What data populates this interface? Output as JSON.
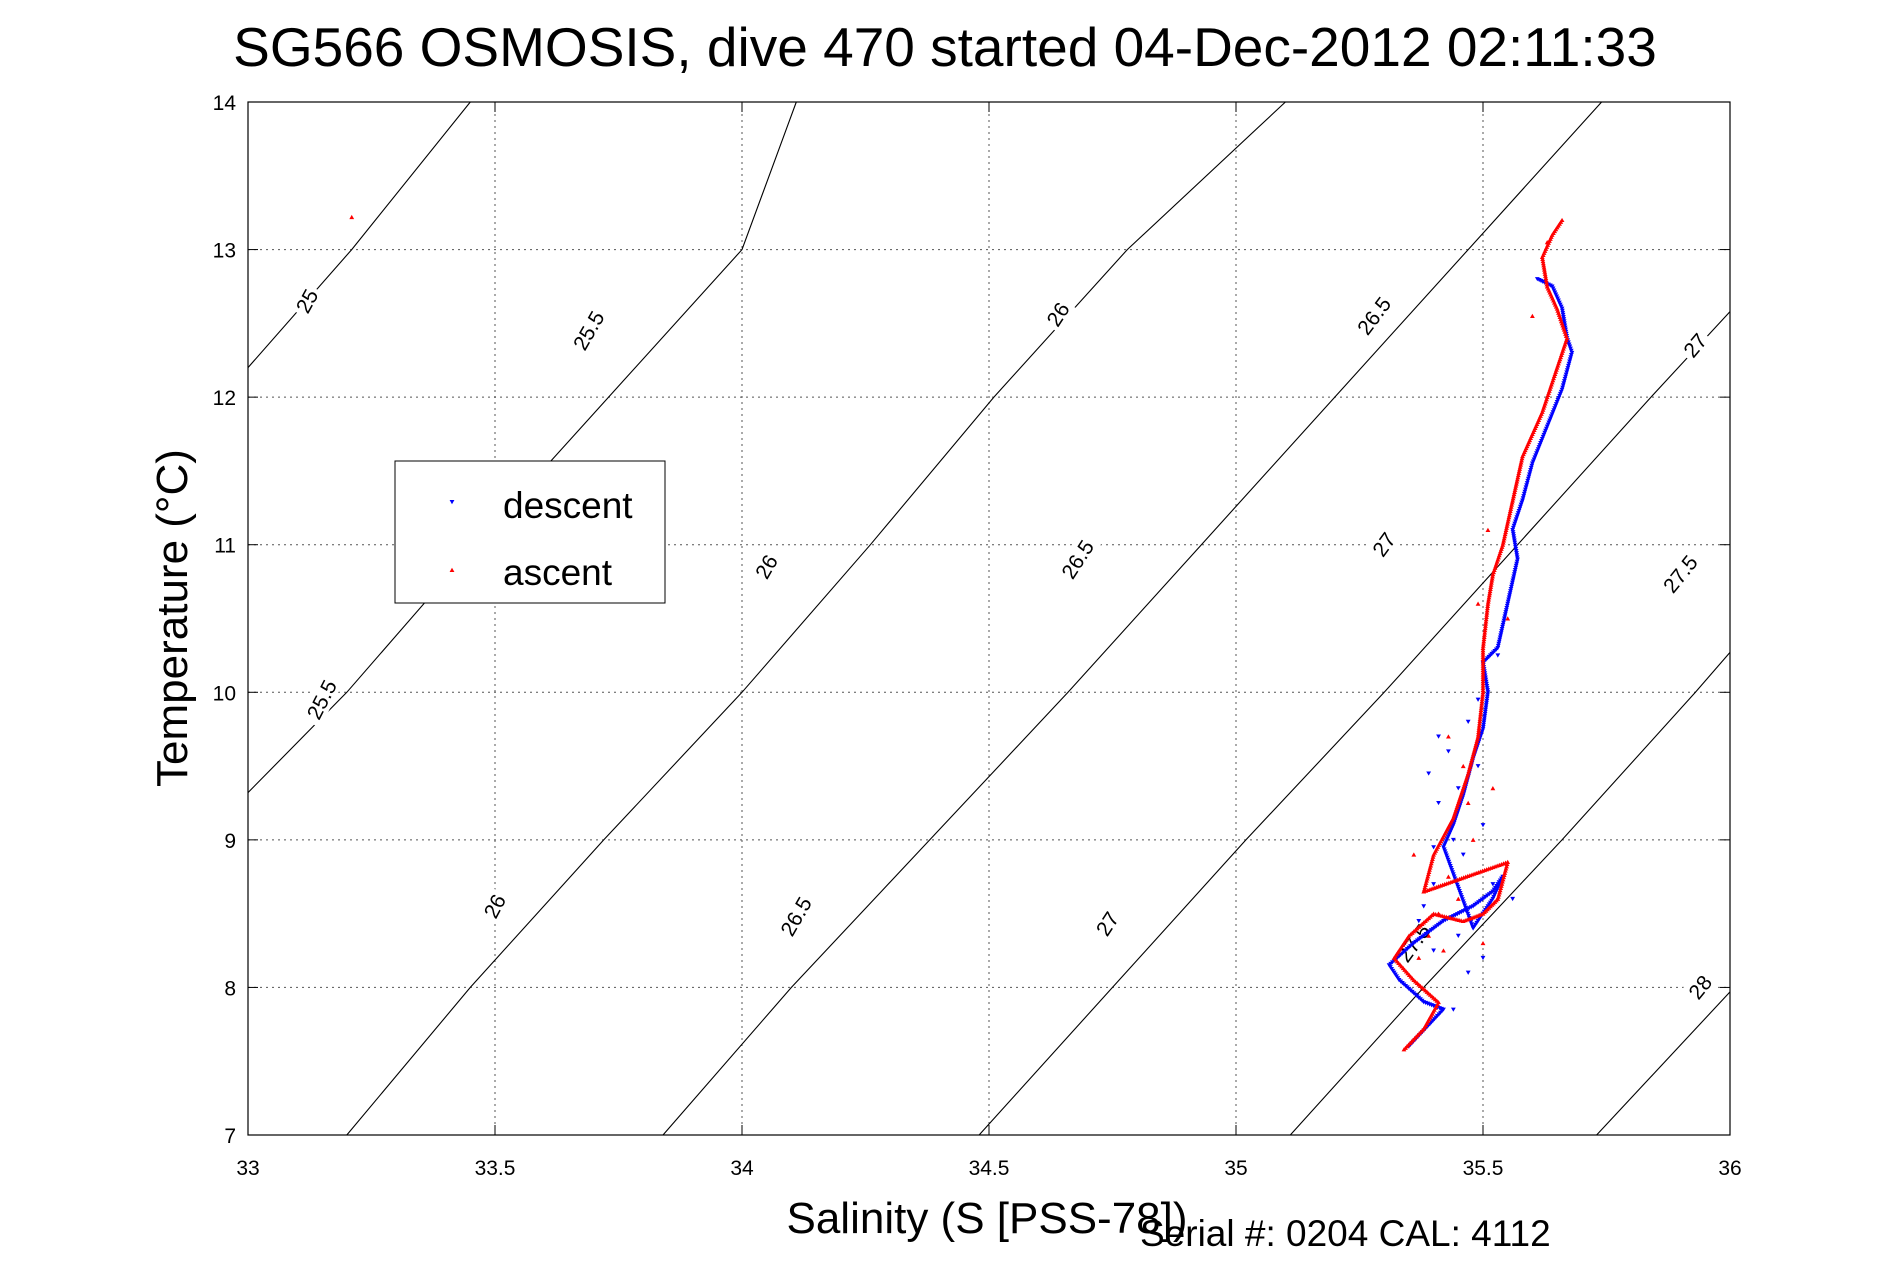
{
  "chart_data": {
    "type": "scatter",
    "title": "SG566 OSMOSIS, dive 470 started 04-Dec-2012 02:11:33",
    "xlabel": "Salinity (S [PSS-78])",
    "ylabel": "Temperature (°C)",
    "xlim": [
      33,
      36
    ],
    "ylim": [
      7,
      14
    ],
    "x_ticks": [
      "33",
      "33.5",
      "34",
      "34.5",
      "35",
      "35.5",
      "36"
    ],
    "y_ticks": [
      "7",
      "8",
      "9",
      "10",
      "11",
      "12",
      "13",
      "14"
    ],
    "grid": true,
    "legend_position": "left",
    "footer": "Serial #: 0204  CAL: 4112",
    "colors": {
      "descent": "#0000ff",
      "ascent": "#ff0000",
      "contour": "#000000"
    },
    "contours": [
      {
        "label": "25",
        "points": [
          [
            33.0,
            12.2
          ],
          [
            33.21,
            13.0
          ],
          [
            33.45,
            14.0
          ]
        ]
      },
      {
        "label": "25.5",
        "points": [
          [
            33.0,
            9.32
          ],
          [
            33.2,
            10.0
          ],
          [
            33.46,
            11.0
          ],
          [
            33.73,
            12.0
          ],
          [
            34.0,
            13.0
          ],
          [
            34.11,
            14.0
          ]
        ]
      },
      {
        "label": "26",
        "points": [
          [
            33.2,
            7.0
          ],
          [
            33.45,
            8.0
          ],
          [
            33.72,
            9.0
          ],
          [
            34.0,
            10.0
          ],
          [
            34.26,
            11.0
          ],
          [
            34.51,
            12.0
          ],
          [
            34.78,
            13.0
          ],
          [
            35.1,
            14.0
          ]
        ]
      },
      {
        "label": "26.5",
        "points": [
          [
            33.84,
            7.0
          ],
          [
            34.1,
            8.0
          ],
          [
            34.38,
            9.0
          ],
          [
            34.66,
            10.0
          ],
          [
            34.93,
            11.0
          ],
          [
            35.2,
            12.0
          ],
          [
            35.47,
            13.0
          ],
          [
            35.74,
            14.0
          ]
        ]
      },
      {
        "label": "27",
        "points": [
          [
            34.48,
            7.0
          ],
          [
            34.75,
            8.0
          ],
          [
            35.02,
            9.0
          ],
          [
            35.3,
            10.0
          ],
          [
            35.57,
            11.0
          ],
          [
            35.84,
            12.0
          ],
          [
            36.0,
            12.58
          ]
        ]
      },
      {
        "label": "27.5",
        "points": [
          [
            35.11,
            7.0
          ],
          [
            35.38,
            8.0
          ],
          [
            35.66,
            9.0
          ],
          [
            35.93,
            10.0
          ],
          [
            36.0,
            10.27
          ]
        ]
      },
      {
        "label": "28",
        "points": [
          [
            35.73,
            7.0
          ],
          [
            36.0,
            7.97
          ]
        ]
      }
    ],
    "contour_labels": [
      {
        "text": "25",
        "s": 33.12,
        "t": 12.65,
        "angle": -61
      },
      {
        "text": "25.5",
        "s": 33.69,
        "t": 12.45,
        "angle": -60
      },
      {
        "text": "26",
        "s": 34.64,
        "t": 12.56,
        "angle": -57
      },
      {
        "text": "26.5",
        "s": 35.28,
        "t": 12.55,
        "angle": -53
      },
      {
        "text": "27",
        "s": 35.93,
        "t": 12.35,
        "angle": -50
      },
      {
        "text": "25.5",
        "s": 33.15,
        "t": 9.95,
        "angle": -63
      },
      {
        "text": "26",
        "s": 34.05,
        "t": 10.85,
        "angle": -60
      },
      {
        "text": "26.5",
        "s": 34.68,
        "t": 10.9,
        "angle": -57
      },
      {
        "text": "27",
        "s": 35.3,
        "t": 11.0,
        "angle": -54
      },
      {
        "text": "27.5",
        "s": 35.9,
        "t": 10.8,
        "angle": -51
      },
      {
        "text": "26",
        "s": 33.5,
        "t": 8.55,
        "angle": -62
      },
      {
        "text": "26.5",
        "s": 34.11,
        "t": 8.48,
        "angle": -60
      },
      {
        "text": "27",
        "s": 34.74,
        "t": 8.43,
        "angle": -57
      },
      {
        "text": "27.5",
        "s": 35.36,
        "t": 8.3,
        "angle": -54
      },
      {
        "text": "28",
        "s": 35.94,
        "t": 8.0,
        "angle": -51
      }
    ],
    "series": [
      {
        "name": "descent",
        "marker": "triangle-down",
        "path": [
          [
            35.35,
            7.6
          ],
          [
            35.42,
            7.85
          ],
          [
            35.38,
            7.9
          ],
          [
            35.33,
            8.05
          ],
          [
            35.31,
            8.15
          ],
          [
            35.36,
            8.3
          ],
          [
            35.42,
            8.45
          ],
          [
            35.48,
            8.55
          ],
          [
            35.52,
            8.65
          ],
          [
            35.54,
            8.75
          ],
          [
            35.52,
            8.6
          ],
          [
            35.48,
            8.4
          ],
          [
            35.42,
            8.95
          ],
          [
            35.44,
            9.1
          ],
          [
            35.46,
            9.3
          ],
          [
            35.48,
            9.55
          ],
          [
            35.5,
            9.75
          ],
          [
            35.51,
            10.0
          ],
          [
            35.5,
            10.2
          ],
          [
            35.53,
            10.3
          ],
          [
            35.55,
            10.6
          ],
          [
            35.57,
            10.9
          ],
          [
            35.56,
            11.1
          ],
          [
            35.58,
            11.3
          ],
          [
            35.6,
            11.55
          ],
          [
            35.63,
            11.8
          ],
          [
            35.66,
            12.05
          ],
          [
            35.68,
            12.3
          ],
          [
            35.67,
            12.4
          ],
          [
            35.66,
            12.6
          ],
          [
            35.64,
            12.75
          ],
          [
            35.61,
            12.8
          ]
        ],
        "scatter": [
          [
            35.38,
            8.55
          ],
          [
            35.4,
            8.7
          ],
          [
            35.45,
            8.35
          ],
          [
            35.5,
            8.2
          ],
          [
            35.47,
            8.1
          ],
          [
            35.44,
            7.85
          ],
          [
            35.4,
            8.25
          ],
          [
            35.37,
            8.45
          ],
          [
            35.39,
            9.45
          ],
          [
            35.41,
            9.25
          ],
          [
            35.43,
            9.6
          ],
          [
            35.47,
            9.8
          ],
          [
            35.49,
            9.5
          ],
          [
            35.45,
            9.35
          ],
          [
            35.4,
            8.95
          ],
          [
            35.46,
            8.9
          ],
          [
            35.5,
            9.1
          ],
          [
            35.52,
            8.7
          ],
          [
            35.56,
            8.6
          ],
          [
            35.41,
            9.7
          ],
          [
            35.44,
            9.0
          ],
          [
            35.53,
            10.25
          ],
          [
            35.49,
            9.95
          ]
        ]
      },
      {
        "name": "ascent",
        "marker": "triangle-up",
        "path": [
          [
            35.34,
            7.58
          ],
          [
            35.38,
            7.72
          ],
          [
            35.41,
            7.9
          ],
          [
            35.36,
            8.05
          ],
          [
            35.32,
            8.2
          ],
          [
            35.35,
            8.35
          ],
          [
            35.4,
            8.5
          ],
          [
            35.46,
            8.45
          ],
          [
            35.5,
            8.5
          ],
          [
            35.53,
            8.6
          ],
          [
            35.55,
            8.85
          ],
          [
            35.38,
            8.65
          ],
          [
            35.4,
            8.9
          ],
          [
            35.44,
            9.15
          ],
          [
            35.47,
            9.45
          ],
          [
            35.49,
            9.7
          ],
          [
            35.5,
            10.0
          ],
          [
            35.5,
            10.3
          ],
          [
            35.51,
            10.6
          ],
          [
            35.52,
            10.8
          ],
          [
            35.54,
            11.0
          ],
          [
            35.56,
            11.3
          ],
          [
            35.58,
            11.6
          ],
          [
            35.62,
            11.9
          ],
          [
            35.64,
            12.1
          ],
          [
            35.66,
            12.3
          ],
          [
            35.67,
            12.4
          ],
          [
            35.65,
            12.6
          ],
          [
            35.63,
            12.75
          ],
          [
            35.62,
            12.95
          ],
          [
            35.64,
            13.1
          ],
          [
            35.66,
            13.2
          ]
        ],
        "scatter": [
          [
            33.21,
            13.22
          ],
          [
            35.37,
            8.2
          ],
          [
            35.42,
            8.25
          ],
          [
            35.45,
            8.6
          ],
          [
            35.43,
            8.75
          ],
          [
            35.47,
            9.25
          ],
          [
            35.48,
            9.0
          ],
          [
            35.52,
            9.35
          ],
          [
            35.46,
            9.5
          ],
          [
            35.43,
            9.7
          ],
          [
            35.41,
            8.5
          ],
          [
            35.39,
            8.35
          ],
          [
            35.36,
            8.9
          ],
          [
            35.5,
            8.3
          ],
          [
            35.49,
            10.6
          ],
          [
            35.55,
            10.5
          ],
          [
            35.51,
            11.1
          ],
          [
            35.6,
            12.55
          ],
          [
            35.63,
            13.05
          ]
        ]
      }
    ]
  }
}
